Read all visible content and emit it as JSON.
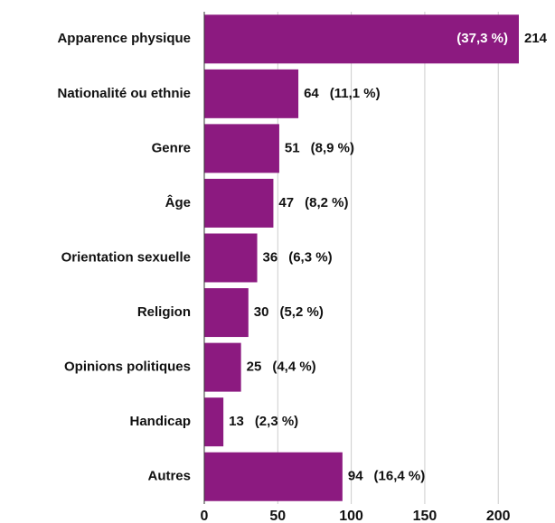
{
  "chart_data": {
    "type": "barh",
    "categories": [
      "Apparence physique",
      "Nationalité ou ethnie",
      "Genre",
      "Âge",
      "Orientation sexuelle",
      "Religion",
      "Opinions politiques",
      "Handicap",
      "Autres"
    ],
    "values": [
      214,
      64,
      51,
      47,
      36,
      30,
      25,
      13,
      94
    ],
    "percentage_labels": [
      "(37,3 %)",
      "(11,1 %)",
      "(8,9 %)",
      "(8,2 %)",
      "(6,3 %)",
      "(5,2 %)",
      "(4,4 %)",
      "(2,3 %)",
      "(16,4 %)"
    ],
    "color": "#8c1a80",
    "xlim": [
      0,
      214
    ],
    "xticks": [
      0,
      50,
      100,
      150,
      200
    ],
    "grid": true
  }
}
